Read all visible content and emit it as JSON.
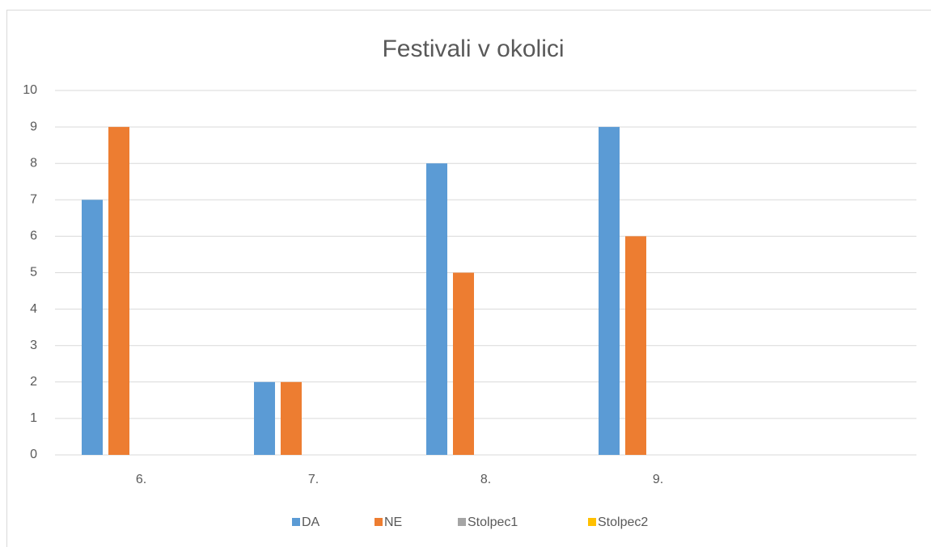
{
  "chart_data": {
    "type": "bar",
    "title": "Festivali v okolici",
    "categories": [
      "6.",
      "7.",
      "8.",
      "9.",
      null
    ],
    "series": [
      {
        "name": "DA",
        "color": "#5b9bd5",
        "values": [
          7,
          2,
          8,
          9,
          null
        ]
      },
      {
        "name": "NE",
        "color": "#ed7d31",
        "values": [
          9,
          2,
          5,
          6,
          null
        ]
      },
      {
        "name": "Stolpec1",
        "color": "#a5a5a5",
        "values": [
          null,
          null,
          null,
          null,
          null
        ]
      },
      {
        "name": "Stolpec2",
        "color": "#ffc000",
        "values": [
          null,
          null,
          null,
          null,
          null
        ]
      }
    ],
    "ylim": [
      0,
      10
    ],
    "yticks": [
      0,
      1,
      2,
      3,
      4,
      5,
      6,
      7,
      8,
      9,
      10
    ],
    "grid": true,
    "legend": "bottom"
  }
}
